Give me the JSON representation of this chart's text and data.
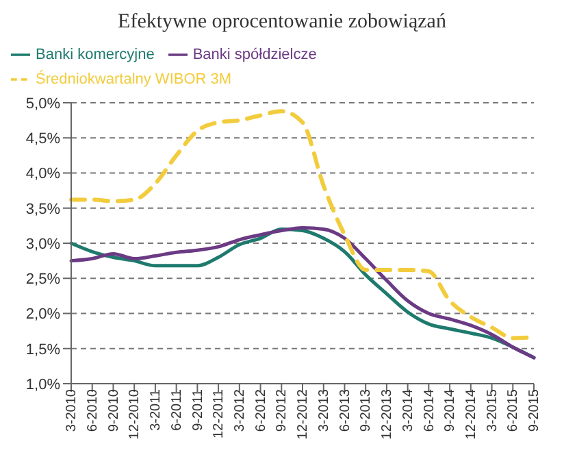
{
  "chart_data": {
    "type": "line",
    "title": "Efektywne oprocentowanie zobowiązań",
    "categories": [
      "3-2010",
      "6-2010",
      "9-2010",
      "12-2010",
      "3-2011",
      "6-2011",
      "9-2011",
      "12-2011",
      "3-2012",
      "6-2012",
      "9-2012",
      "12-2012",
      "3-2013",
      "6-2013",
      "9-2013",
      "12-2013",
      "3-2014",
      "6-2014",
      "9-2014",
      "12-2014",
      "3-2015",
      "6-2015",
      "9-2015"
    ],
    "series": [
      {
        "name": "Banki komercyjne",
        "color": "#1f7a6e",
        "line_style": "solid",
        "values": [
          3.0,
          2.88,
          2.8,
          2.75,
          2.68,
          2.68,
          2.68,
          2.8,
          2.98,
          3.07,
          3.2,
          3.18,
          3.07,
          2.88,
          2.55,
          2.28,
          2.02,
          1.85,
          1.78,
          1.72,
          1.65,
          1.52,
          1.37
        ]
      },
      {
        "name": "Banki spółdzielcze",
        "color": "#6b3a84",
        "line_style": "solid",
        "values": [
          2.75,
          2.78,
          2.85,
          2.78,
          2.82,
          2.87,
          2.9,
          2.95,
          3.05,
          3.12,
          3.18,
          3.22,
          3.2,
          3.07,
          2.78,
          2.47,
          2.18,
          2.0,
          1.92,
          1.83,
          1.7,
          1.52,
          1.37
        ]
      },
      {
        "name": "Średniokwartalny WIBOR 3M",
        "color": "#f2cc3d",
        "line_style": "dashed",
        "values": [
          3.62,
          3.62,
          3.6,
          3.62,
          3.85,
          4.25,
          4.6,
          4.72,
          4.75,
          4.82,
          4.88,
          4.72,
          3.82,
          3.12,
          2.62,
          2.62,
          2.62,
          2.6,
          2.18,
          1.95,
          1.8,
          1.65,
          1.66
        ]
      }
    ],
    "ylim": [
      1.0,
      5.0
    ],
    "yticks": [
      {
        "value": 1.0,
        "label": "1,0%"
      },
      {
        "value": 1.5,
        "label": "1,5%"
      },
      {
        "value": 2.0,
        "label": "2,0%"
      },
      {
        "value": 2.5,
        "label": "2,5%"
      },
      {
        "value": 3.0,
        "label": "3,0%"
      },
      {
        "value": 3.5,
        "label": "3,5%"
      },
      {
        "value": 4.0,
        "label": "4,0%"
      },
      {
        "value": 4.5,
        "label": "4,5%"
      },
      {
        "value": 5.0,
        "label": "5,0%"
      }
    ],
    "grid": "y",
    "legend": "top",
    "marker": "none"
  }
}
